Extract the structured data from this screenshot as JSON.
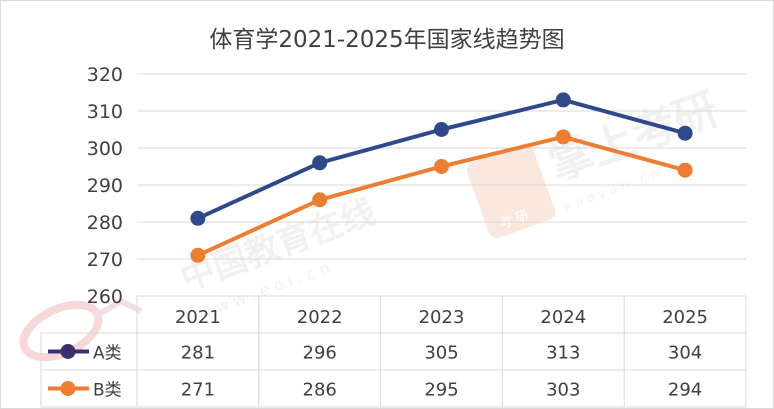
{
  "chart_data": {
    "type": "line",
    "title": "体育学2021-2025年国家线趋势图",
    "categories": [
      "2021",
      "2022",
      "2023",
      "2024",
      "2025"
    ],
    "ylim": [
      260,
      320
    ],
    "yticks": [
      260,
      270,
      280,
      290,
      300,
      310,
      320
    ],
    "grid": true,
    "data_table": true,
    "series": [
      {
        "name": "A类",
        "values": [
          281,
          296,
          305,
          313,
          304
        ],
        "color": "#2f4a8a",
        "legend_color": "#3b2f6e"
      },
      {
        "name": "B类",
        "values": [
          271,
          286,
          295,
          303,
          294
        ],
        "color": "#ed7d31",
        "legend_color": "#ed7d31"
      }
    ]
  },
  "watermarks": {
    "eol_cn": "中国教育在线",
    "eol_url": "w w w . e o l . c n",
    "kaoyan_cn": "掌上考研",
    "kaoyan_badge": "考 研",
    "kaoyan_url": "k a o y a n . c n"
  },
  "colors": {
    "grid": "#d9d9d9",
    "text": "#404040",
    "frame": "#d9d9d9"
  }
}
